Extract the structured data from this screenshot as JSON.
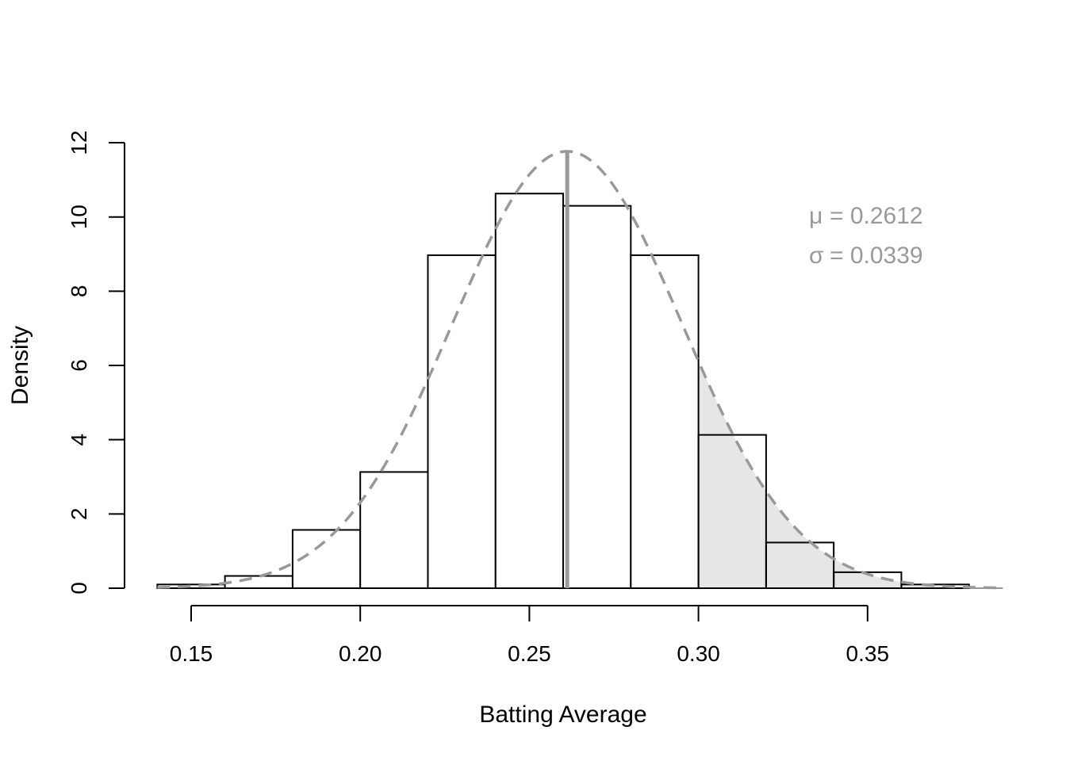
{
  "chart_data": {
    "type": "histogram",
    "xlabel": "Batting Average",
    "ylabel": "Density",
    "xlim": [
      0.14,
      0.39
    ],
    "ylim": [
      0,
      12
    ],
    "x_ticks": [
      0.15,
      0.2,
      0.25,
      0.3,
      0.35
    ],
    "x_tick_labels": [
      "0.15",
      "0.20",
      "0.25",
      "0.30",
      "0.35"
    ],
    "y_ticks": [
      0,
      2,
      4,
      6,
      8,
      10,
      12
    ],
    "y_tick_labels": [
      "0",
      "2",
      "4",
      "6",
      "8",
      "10",
      "12"
    ],
    "bins": [
      {
        "start": 0.14,
        "end": 0.16,
        "density": 0.1
      },
      {
        "start": 0.16,
        "end": 0.18,
        "density": 0.33
      },
      {
        "start": 0.18,
        "end": 0.2,
        "density": 1.57
      },
      {
        "start": 0.2,
        "end": 0.22,
        "density": 3.13
      },
      {
        "start": 0.22,
        "end": 0.24,
        "density": 8.97
      },
      {
        "start": 0.24,
        "end": 0.26,
        "density": 10.63
      },
      {
        "start": 0.26,
        "end": 0.28,
        "density": 10.3
      },
      {
        "start": 0.28,
        "end": 0.3,
        "density": 8.97
      },
      {
        "start": 0.3,
        "end": 0.32,
        "density": 4.13
      },
      {
        "start": 0.32,
        "end": 0.34,
        "density": 1.23
      },
      {
        "start": 0.34,
        "end": 0.36,
        "density": 0.43
      },
      {
        "start": 0.36,
        "end": 0.38,
        "density": 0.1
      }
    ],
    "normal_curve": {
      "mean": 0.2612,
      "sd": 0.0339,
      "x_range": [
        0.14,
        0.39
      ],
      "style": "dashed",
      "color": "#999999"
    },
    "shaded_region": {
      "from": 0.3,
      "to": 0.39,
      "color": "#e6e6e6"
    },
    "mean_line": {
      "x": 0.2612,
      "color": "#999999"
    },
    "annotations": [
      {
        "symbol": "μ",
        "text": "= 0.2612"
      },
      {
        "symbol": "σ",
        "text": "= 0.0339"
      }
    ],
    "colors": {
      "bars_fill": "#ffffff",
      "bars_stroke": "#000000",
      "curve": "#999999",
      "shade": "#e6e6e6",
      "annotation": "#999999"
    }
  }
}
